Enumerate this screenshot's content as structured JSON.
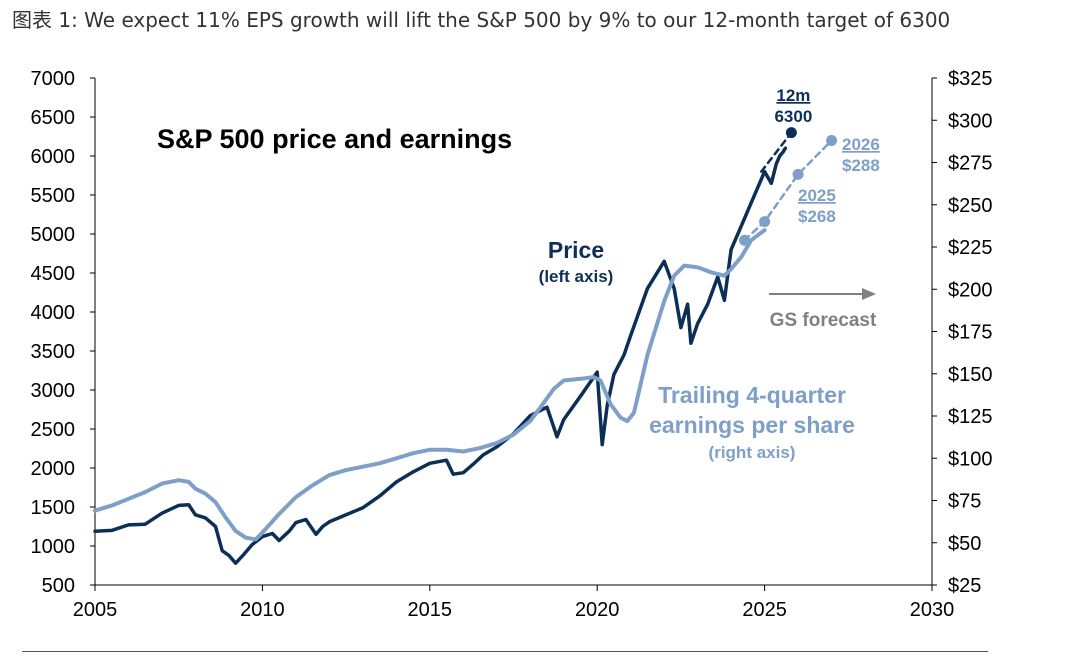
{
  "caption": "图表 1: We expect 11% EPS growth will lift the S&P 500 by 9% to our 12-month target of 6300",
  "colors": {
    "price": "#0c2f57",
    "eps": "#7e9fc8",
    "forecast_text": "#808080",
    "axis": "#000000"
  },
  "chart_data": {
    "type": "line",
    "title": "S&P 500 price and earnings",
    "x_ticks": [
      "2005",
      "2010",
      "2015",
      "2020",
      "2025",
      "2030"
    ],
    "xlim": [
      2005,
      2030
    ],
    "y_left_ticks": [
      "7000",
      "6500",
      "6000",
      "5500",
      "5000",
      "4500",
      "4000",
      "3500",
      "3000",
      "2500",
      "2000",
      "1500",
      "1000",
      "500"
    ],
    "ylim_left": [
      500,
      7000
    ],
    "y_right_ticks": [
      "$325",
      "$300",
      "$275",
      "$250",
      "$225",
      "$200",
      "$175",
      "$150",
      "$125",
      "$100",
      "$75",
      "$50",
      "$25"
    ],
    "ylim_right": [
      25,
      325
    ],
    "series": [
      {
        "name": "Price",
        "sublabel": "(left axis)",
        "axis": "left",
        "x": [
          2005.0,
          2005.5,
          2006.0,
          2006.5,
          2007.0,
          2007.5,
          2007.8,
          2008.0,
          2008.3,
          2008.6,
          2008.8,
          2009.0,
          2009.2,
          2009.4,
          2009.7,
          2010.0,
          2010.3,
          2010.5,
          2010.8,
          2011.0,
          2011.3,
          2011.6,
          2011.8,
          2012.0,
          2012.5,
          2013.0,
          2013.5,
          2014.0,
          2014.5,
          2015.0,
          2015.5,
          2015.7,
          2016.0,
          2016.3,
          2016.6,
          2017.0,
          2017.5,
          2018.0,
          2018.5,
          2018.8,
          2019.0,
          2019.5,
          2020.0,
          2020.15,
          2020.3,
          2020.5,
          2020.8,
          2021.0,
          2021.5,
          2022.0,
          2022.3,
          2022.5,
          2022.7,
          2022.8,
          2023.0,
          2023.3,
          2023.6,
          2023.8,
          2024.0,
          2024.3,
          2024.6,
          2024.8,
          2025.0,
          2025.2,
          2025.35,
          2025.45,
          2025.55,
          2025.62
        ],
        "values": [
          1190,
          1200,
          1270,
          1280,
          1420,
          1520,
          1530,
          1400,
          1360,
          1250,
          940,
          880,
          780,
          870,
          1020,
          1120,
          1160,
          1070,
          1190,
          1300,
          1340,
          1150,
          1250,
          1310,
          1400,
          1490,
          1640,
          1820,
          1950,
          2060,
          2100,
          1920,
          1940,
          2050,
          2170,
          2270,
          2440,
          2670,
          2780,
          2400,
          2620,
          2920,
          3230,
          2300,
          2800,
          3200,
          3450,
          3700,
          4300,
          4650,
          4300,
          3800,
          4100,
          3600,
          3850,
          4100,
          4450,
          4150,
          4800,
          5100,
          5400,
          5600,
          5800,
          5650,
          5900,
          6000,
          6050,
          6100
        ]
      },
      {
        "name": "Price forecast",
        "axis": "left",
        "dashed": true,
        "x": [
          2024.9,
          2025.8
        ],
        "values": [
          5800,
          6300
        ]
      },
      {
        "name": "Trailing 4-quarter earnings per share",
        "sublabel": "(right axis)",
        "axis": "right",
        "x": [
          2005.0,
          2005.5,
          2006.0,
          2006.5,
          2007.0,
          2007.5,
          2007.8,
          2008.0,
          2008.3,
          2008.6,
          2008.9,
          2009.2,
          2009.5,
          2009.8,
          2010.0,
          2010.5,
          2011.0,
          2011.5,
          2012.0,
          2012.5,
          2013.0,
          2013.5,
          2014.0,
          2014.5,
          2015.0,
          2015.5,
          2016.0,
          2016.5,
          2017.0,
          2017.5,
          2018.0,
          2018.3,
          2018.7,
          2019.0,
          2019.5,
          2019.9,
          2020.1,
          2020.4,
          2020.7,
          2020.9,
          2021.1,
          2021.5,
          2022.0,
          2022.3,
          2022.6,
          2023.0,
          2023.4,
          2023.8,
          2024.0,
          2024.3,
          2024.6,
          2025.0
        ],
        "values": [
          69,
          72,
          76,
          80,
          85,
          87,
          86,
          82,
          79,
          74,
          65,
          57,
          53,
          52,
          56,
          67,
          77,
          84,
          90,
          93,
          95,
          97,
          100,
          103,
          105,
          105,
          104,
          106,
          109,
          114,
          122,
          130,
          141,
          146,
          147,
          148,
          146,
          132,
          124,
          122,
          127,
          161,
          193,
          208,
          214,
          213,
          210,
          208,
          212,
          219,
          229,
          235
        ]
      },
      {
        "name": "EPS forecast",
        "axis": "right",
        "dashed": true,
        "x": [
          2024.4,
          2025.0,
          2026.0,
          2027.0
        ],
        "values": [
          229,
          240,
          268,
          288
        ]
      }
    ],
    "forecast_points": [
      {
        "label": "12m",
        "value_label": "6300",
        "x": 2025.8,
        "value": 6300,
        "axis": "left"
      },
      {
        "label": "2025",
        "value_label": "$268",
        "x": 2026.0,
        "value": 268,
        "axis": "right"
      },
      {
        "label": "2026",
        "value_label": "$288",
        "x": 2027.0,
        "value": 288,
        "axis": "right"
      },
      {
        "x": 2024.4,
        "value": 229,
        "axis": "right"
      },
      {
        "x": 2025.0,
        "value": 240,
        "axis": "right"
      }
    ],
    "annotations": {
      "price_label": "Price",
      "price_sub": "(left axis)",
      "eps_label_line1": "Trailing 4-quarter",
      "eps_label_line2": "earnings per share",
      "eps_sub": "(right axis)",
      "forecast": "GS forecast"
    }
  }
}
